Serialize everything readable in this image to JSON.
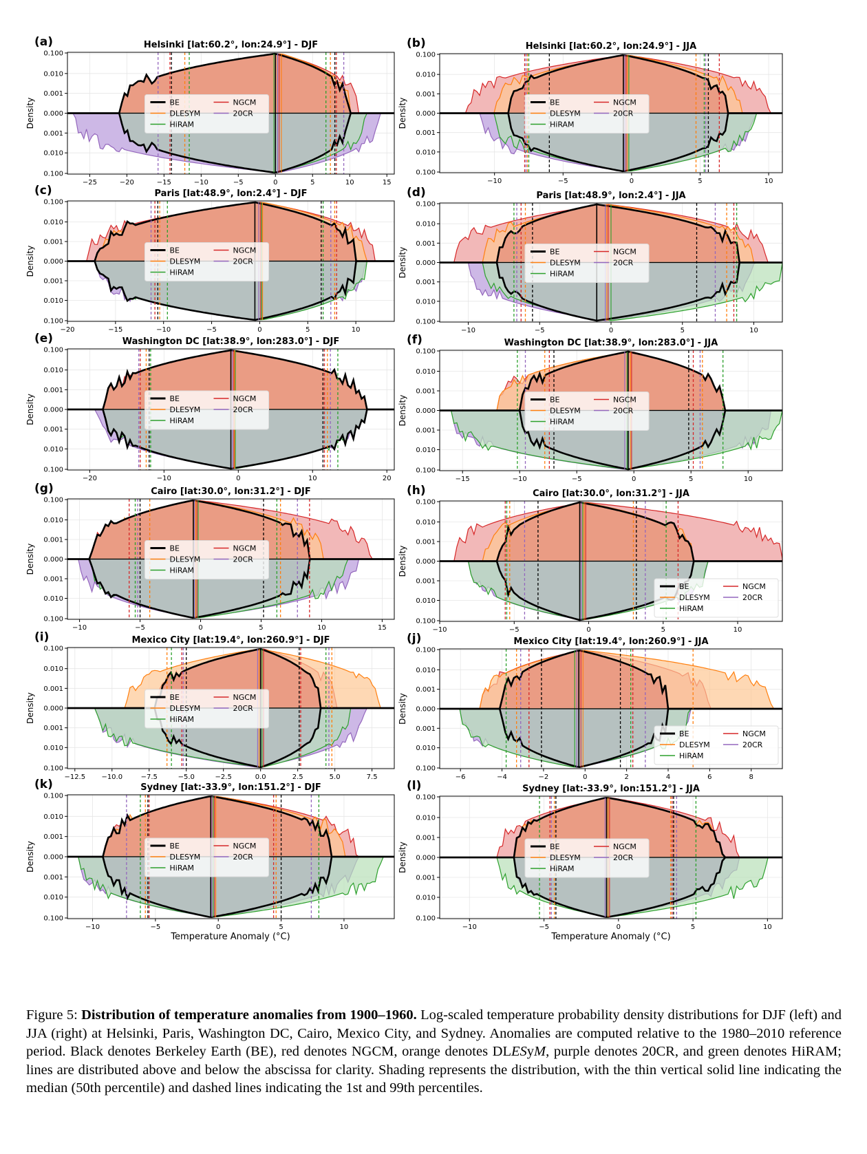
{
  "figure": {
    "xlabel": "Temperature Anomaly (°C)",
    "ylabel": "Density",
    "legend": [
      "BE",
      "NGCM",
      "DLESYM",
      "20CR",
      "HiRAM"
    ]
  },
  "colors": {
    "BE": "#000000",
    "NGCM": "#d62728",
    "DLESYM": "#ff7f0e",
    "20CR": "#9467bd",
    "HiRAM": "#2ca02c",
    "upper_fill": "#ea9c84",
    "lower_fill": "#b6c1c0",
    "red_fill": "#f2b8b8",
    "orange_fill": "#fdc894",
    "purple_fill": "#cdb8e6",
    "green_fill": "#b8e0b8"
  },
  "chart_data": [
    {
      "panel": "(a)",
      "type": "area",
      "title": "Helsinki [lat:60.2°, lon:24.9°] - DJF",
      "xlim": [
        -28,
        16
      ],
      "xticks": [
        -25,
        -20,
        -15,
        -10,
        -5,
        0,
        5,
        10,
        15
      ],
      "xticklabels": [
        "−25",
        "−20",
        "−15",
        "−10",
        "−5",
        "0",
        "5",
        "10",
        "15"
      ],
      "yscale": "symlog",
      "yticklabels": [
        "0.100",
        "0.010",
        "0.001",
        "0.000",
        "0.001",
        "0.010",
        "0.100"
      ],
      "span": {
        "BE": [
          -21,
          10
        ],
        "NGCM": [
          -16,
          11
        ],
        "DLESYM": [
          -15,
          10
        ],
        "20CR": [
          -27,
          14
        ],
        "HiRAM": [
          -17,
          12
        ]
      },
      "median": {
        "BE": 0,
        "NGCM": 0.5,
        "DLESYM": 0.8,
        "20CR": 0.3,
        "HiRAM": -0.2
      },
      "p1": {
        "BE": -14,
        "NGCM": -14.2,
        "DLESYM": -12.2,
        "20CR": -15.8,
        "HiRAM": -11.6
      },
      "p99": {
        "BE": 8,
        "NGCM": 8.2,
        "DLESYM": 7.4,
        "20CR": 9.2,
        "HiRAM": 6.8
      },
      "legend_loc": "center"
    },
    {
      "panel": "(b)",
      "type": "area",
      "title": "Helsinki [lat:60.2°, lon:24.9°] - JJA",
      "xlim": [
        -14,
        11
      ],
      "xticks": [
        -10,
        -5,
        0,
        5,
        10
      ],
      "xticklabels": [
        "−10",
        "−5",
        "0",
        "5",
        "10"
      ],
      "yscale": "symlog",
      "yticklabels": [
        "0.100",
        "0.010",
        "0.001",
        "0.000",
        "0.001",
        "0.010",
        "0.100"
      ],
      "span": {
        "BE": [
          -9,
          7
        ],
        "NGCM": [
          -12,
          10
        ],
        "DLESYM": [
          -10,
          8
        ],
        "20CR": [
          -11,
          9
        ],
        "HiRAM": [
          -10,
          9
        ]
      },
      "median": {
        "BE": -0.6,
        "NGCM": -0.4,
        "DLESYM": -0.3,
        "20CR": -0.5,
        "HiRAM": -0.2
      },
      "p1": {
        "BE": -6,
        "NGCM": -7.8,
        "DLESYM": -7.6,
        "20CR": -7.7,
        "HiRAM": -7.5
      },
      "p99": {
        "BE": 5.6,
        "NGCM": 6.4,
        "DLESYM": 4.7,
        "20CR": 5.4,
        "HiRAM": 5.3
      },
      "legend_loc": "center"
    },
    {
      "panel": "(c)",
      "type": "area",
      "title": "Paris [lat:48.9°, lon:2.4°] - DJF",
      "xlim": [
        -20,
        14
      ],
      "xticks": [
        -20,
        -15,
        -10,
        -5,
        0,
        5,
        10
      ],
      "xticklabels": [
        "−20",
        "−15",
        "−10",
        "−5",
        "0",
        "5",
        "10"
      ],
      "yscale": "symlog",
      "yticklabels": [
        "0.100",
        "0.010",
        "0.001",
        "0.000",
        "0.001",
        "0.010",
        "0.100"
      ],
      "span": {
        "BE": [
          -17,
          10
        ],
        "NGCM": [
          -18,
          12
        ],
        "DLESYM": [
          -17,
          11
        ],
        "20CR": [
          -17,
          11
        ],
        "HiRAM": [
          -16,
          11
        ]
      },
      "median": {
        "BE": -0.5,
        "NGCM": 0.1,
        "DLESYM": 0.3,
        "20CR": -0.1,
        "HiRAM": 0.2
      },
      "p1": {
        "BE": -10.6,
        "NGCM": -10.9,
        "DLESYM": -10.4,
        "20CR": -11.3,
        "HiRAM": -9.6
      },
      "p99": {
        "BE": 6.4,
        "NGCM": 8,
        "DLESYM": 7.8,
        "20CR": 7.4,
        "HiRAM": 6.6
      },
      "legend_loc": "center"
    },
    {
      "panel": "(d)",
      "type": "area",
      "title": "Paris [lat:48.9°, lon:2.4°] - JJA",
      "xlim": [
        -12,
        12
      ],
      "xticks": [
        -10,
        -5,
        0,
        5,
        10
      ],
      "xticklabels": [
        "−10",
        "−5",
        "0",
        "5",
        "10"
      ],
      "yscale": "symlog",
      "yticklabels": [
        "0.100",
        "0.010",
        "0.001",
        "0.000",
        "0.001",
        "0.010",
        "0.100"
      ],
      "span": {
        "BE": [
          -8,
          9
        ],
        "NGCM": [
          -11,
          11
        ],
        "DLESYM": [
          -9,
          10
        ],
        "20CR": [
          -10,
          10
        ],
        "HiRAM": [
          -9,
          12
        ]
      },
      "median": {
        "BE": -1,
        "NGCM": -0.2,
        "DLESYM": -0.3,
        "20CR": -0.4,
        "HiRAM": 0
      },
      "p1": {
        "BE": -5.5,
        "NGCM": -6.3,
        "DLESYM": -6,
        "20CR": -6.6,
        "HiRAM": -6.8
      },
      "p99": {
        "BE": 6,
        "NGCM": 8.6,
        "DLESYM": 8.1,
        "20CR": 7.3,
        "HiRAM": 8.8
      },
      "legend_loc": "center"
    },
    {
      "panel": "(e)",
      "type": "area",
      "title": "Washington DC [lat:38.9°, lon:283.0°] - DJF",
      "xlim": [
        -23,
        21
      ],
      "xticks": [
        -20,
        -10,
        0,
        10,
        20
      ],
      "xticklabels": [
        "−20",
        "−10",
        "0",
        "10",
        "20"
      ],
      "yscale": "symlog",
      "yticklabels": [
        "0.100",
        "0.010",
        "0.001",
        "0.000",
        "0.001",
        "0.010",
        "0.100"
      ],
      "span": {
        "BE": [
          -18,
          17
        ],
        "NGCM": [
          -17,
          14
        ],
        "DLESYM": [
          -16,
          14
        ],
        "20CR": [
          -19,
          16
        ],
        "HiRAM": [
          -17,
          16
        ]
      },
      "median": {
        "BE": -1,
        "NGCM": -0.6,
        "DLESYM": -0.5,
        "20CR": -0.8,
        "HiRAM": -0.4
      },
      "p1": {
        "BE": -12,
        "NGCM": -13.2,
        "DLESYM": -12.4,
        "20CR": -13.4,
        "HiRAM": -11.8
      },
      "p99": {
        "BE": 11.4,
        "NGCM": 11.6,
        "DLESYM": 12,
        "20CR": 12.4,
        "HiRAM": 13.4
      },
      "legend_loc": "center"
    },
    {
      "panel": "(f)",
      "type": "area",
      "title": "Washington DC [lat:38.9°, lon:283.0°] - JJA",
      "xlim": [
        -17,
        13
      ],
      "xticks": [
        -15,
        -10,
        -5,
        0,
        5,
        10
      ],
      "xticklabels": [
        "−15",
        "−10",
        "−5",
        "0",
        "5",
        "10"
      ],
      "yscale": "symlog",
      "yticklabels": [
        "0.100",
        "0.010",
        "0.001",
        "0.000",
        "0.001",
        "0.010",
        "0.100"
      ],
      "span": {
        "BE": [
          -10,
          8
        ],
        "NGCM": [
          -12,
          7
        ],
        "DLESYM": [
          -12,
          7
        ],
        "20CR": [
          -16,
          12
        ],
        "HiRAM": [
          -16,
          13
        ]
      },
      "median": {
        "BE": -0.5,
        "NGCM": -0.2,
        "DLESYM": -0.3,
        "20CR": -0.8,
        "HiRAM": -0.6
      },
      "p1": {
        "BE": -7,
        "NGCM": -7.4,
        "DLESYM": -7.8,
        "20CR": -9.5,
        "HiRAM": -10.2
      },
      "p99": {
        "BE": 4.8,
        "NGCM": 5.2,
        "DLESYM": 6,
        "20CR": 5.8,
        "HiRAM": 7.8
      },
      "legend_loc": "center"
    },
    {
      "panel": "(g)",
      "type": "area",
      "title": "Cairo [lat:30.0°, lon:31.2°] - DJF",
      "xlim": [
        -11,
        16
      ],
      "xticks": [
        -10,
        -5,
        0,
        5,
        10,
        15
      ],
      "xticklabels": [
        "−10",
        "−5",
        "0",
        "5",
        "10",
        "15"
      ],
      "yscale": "symlog",
      "yticklabels": [
        "0.100",
        "0.010",
        "0.001",
        "0.000",
        "0.001",
        "0.010",
        "0.100"
      ],
      "span": {
        "BE": [
          -9,
          9
        ],
        "NGCM": [
          -9,
          14
        ],
        "DLESYM": [
          -8,
          10
        ],
        "20CR": [
          -10,
          13
        ],
        "HiRAM": [
          -9,
          12
        ]
      },
      "median": {
        "BE": -0.6,
        "NGCM": -0.3,
        "DLESYM": -0.4,
        "20CR": -0.5,
        "HiRAM": -0.2
      },
      "p1": {
        "BE": -5,
        "NGCM": -5.9,
        "DLESYM": -4.2,
        "20CR": -5.2,
        "HiRAM": -5.4
      },
      "p99": {
        "BE": 5.2,
        "NGCM": 9,
        "DLESYM": 6.6,
        "20CR": 8,
        "HiRAM": 6.3
      },
      "legend_loc": "center"
    },
    {
      "panel": "(h)",
      "type": "area",
      "title": "Cairo [lat:30.0°, lon:31.2°] - JJA",
      "xlim": [
        -10,
        13
      ],
      "xticks": [
        -10,
        -5,
        0,
        5,
        10
      ],
      "xticklabels": [
        "−10",
        "−5",
        "0",
        "5",
        "10"
      ],
      "yscale": "symlog",
      "yticklabels": [
        "0.100",
        "0.010",
        "0.001",
        "0.000",
        "0.001",
        "0.010",
        "0.100"
      ],
      "span": {
        "BE": [
          -6,
          7
        ],
        "NGCM": [
          -9,
          13
        ],
        "DLESYM": [
          -7,
          7
        ],
        "20CR": [
          -8,
          8
        ],
        "HiRAM": [
          -8,
          8
        ]
      },
      "median": {
        "BE": -0.6,
        "NGCM": -0.2,
        "DLESYM": -0.3,
        "20CR": -0.5,
        "HiRAM": -0.4
      },
      "p1": {
        "BE": -3.4,
        "NGCM": -5.6,
        "DLESYM": -5.3,
        "20CR": -4.3,
        "HiRAM": -5.5
      },
      "p99": {
        "BE": 3.2,
        "NGCM": 6,
        "DLESYM": 3,
        "20CR": 3.8,
        "HiRAM": 5.2
      },
      "legend_loc": "lower right"
    },
    {
      "panel": "(i)",
      "type": "area",
      "title": "Mexico City [lat:19.4°, lon:260.9°] - DJF",
      "xlim": [
        -13,
        9
      ],
      "xticks": [
        -12.5,
        -10,
        -7.5,
        -5,
        -2.5,
        0,
        2.5,
        5,
        7.5
      ],
      "xticklabels": [
        "−12.5",
        "−10.0",
        "−7.5",
        "−5.0",
        "−2.5",
        "0.0",
        "2.5",
        "5.0",
        "7.5"
      ],
      "yscale": "symlog",
      "yticklabels": [
        "0.100",
        "0.010",
        "0.001",
        "0.000",
        "0.001",
        "0.010",
        "0.100"
      ],
      "span": {
        "BE": [
          -7,
          4
        ],
        "NGCM": [
          -7,
          5
        ],
        "DLESYM": [
          -9,
          8
        ],
        "20CR": [
          -11,
          7
        ],
        "HiRAM": [
          -11,
          6
        ]
      },
      "median": {
        "BE": 0,
        "NGCM": 0.2,
        "DLESYM": -0.1,
        "20CR": -0.2,
        "HiRAM": 0.1
      },
      "p1": {
        "BE": -5,
        "NGCM": -5.3,
        "DLESYM": -6.3,
        "20CR": -5.2,
        "HiRAM": -6
      },
      "p99": {
        "BE": 2.6,
        "NGCM": 2.7,
        "DLESYM": 4.8,
        "20CR": 4.6,
        "HiRAM": 4.4
      },
      "legend_loc": "center"
    },
    {
      "panel": "(j)",
      "type": "area",
      "title": "Mexico City [lat:19.4°, lon:260.9°] - JJA",
      "xlim": [
        -7,
        9.5
      ],
      "xticks": [
        -6,
        -4,
        -2,
        0,
        2,
        4,
        6,
        8
      ],
      "xticklabels": [
        "−6",
        "−4",
        "−2",
        "0",
        "2",
        "4",
        "6",
        "8"
      ],
      "yscale": "symlog",
      "yticklabels": [
        "0.100",
        "0.010",
        "0.001",
        "0.000",
        "0.001",
        "0.010",
        "0.100"
      ],
      "span": {
        "BE": [
          -4,
          4
        ],
        "NGCM": [
          -5,
          6
        ],
        "DLESYM": [
          -5,
          9
        ],
        "20CR": [
          -6,
          5
        ],
        "HiRAM": [
          -6,
          5
        ]
      },
      "median": {
        "BE": -0.3,
        "NGCM": -0.2,
        "DLESYM": -0.1,
        "20CR": -0.4,
        "HiRAM": -0.5
      },
      "p1": {
        "BE": -2.1,
        "NGCM": -2.7,
        "DLESYM": -3.3,
        "20CR": -3.1,
        "HiRAM": -3.8
      },
      "p99": {
        "BE": 1.7,
        "NGCM": 2.3,
        "DLESYM": 5.2,
        "20CR": 2.9,
        "HiRAM": 2.2
      },
      "legend_loc": "lower right"
    },
    {
      "panel": "(k)",
      "type": "area",
      "title": "Sydney [lat:-33.9°, lon:151.2°] - DJF",
      "xlim": [
        -12,
        14
      ],
      "xticks": [
        -10,
        -5,
        0,
        5,
        10
      ],
      "xticklabels": [
        "−10",
        "−5",
        "0",
        "5",
        "10"
      ],
      "yscale": "symlog",
      "yticklabels": [
        "0.100",
        "0.010",
        "0.001",
        "0.000",
        "0.001",
        "0.010",
        "0.100"
      ],
      "span": {
        "BE": [
          -9,
          9
        ],
        "NGCM": [
          -9,
          11
        ],
        "DLESYM": [
          -9,
          10
        ],
        "20CR": [
          -11,
          11
        ],
        "HiRAM": [
          -11,
          13
        ]
      },
      "median": {
        "BE": -0.6,
        "NGCM": -0.3,
        "DLESYM": -0.2,
        "20CR": -0.5,
        "HiRAM": -0.4
      },
      "p1": {
        "BE": -5.6,
        "NGCM": -5.5,
        "DLESYM": -5.8,
        "20CR": -7.3,
        "HiRAM": -6.2
      },
      "p99": {
        "BE": 5,
        "NGCM": 4.4,
        "DLESYM": 4.6,
        "20CR": 7.4,
        "HiRAM": 8
      },
      "legend_loc": "center"
    },
    {
      "panel": "(l)",
      "type": "area",
      "title": "Sydney [lat:-33.9°, lon:151.2°] - JJA",
      "xlim": [
        -12,
        11
      ],
      "xticks": [
        -10,
        -5,
        0,
        5,
        10
      ],
      "xticklabels": [
        "−10",
        "−5",
        "0",
        "5",
        "10"
      ],
      "yscale": "symlog",
      "yticklabels": [
        "0.100",
        "0.010",
        "0.001",
        "0.000",
        "0.001",
        "0.010",
        "0.100"
      ],
      "span": {
        "BE": [
          -7,
          7
        ],
        "NGCM": [
          -8,
          8
        ],
        "DLESYM": [
          -7,
          7
        ],
        "20CR": [
          -7,
          8
        ],
        "HiRAM": [
          -8,
          10
        ]
      },
      "median": {
        "BE": -0.8,
        "NGCM": -0.6,
        "DLESYM": -0.7,
        "20CR": -0.9,
        "HiRAM": -0.7
      },
      "p1": {
        "BE": -4.2,
        "NGCM": -4.6,
        "DLESYM": -4.3,
        "20CR": -4.5,
        "HiRAM": -5.3
      },
      "p99": {
        "BE": 3.7,
        "NGCM": 3.6,
        "DLESYM": 3.5,
        "20CR": 3.9,
        "HiRAM": 5.2
      },
      "legend_loc": "center"
    }
  ],
  "caption": {
    "prefix": "Figure 5: ",
    "bold": "Distribution of temperature anomalies from 1900–1960.",
    "text1": " Log-scaled temperature probability density distributions for DJF (left) and JJA (right) at Helsinki, Paris, Washington DC, Cairo, Mexico City, and Sydney. Anomalies are computed relative to the 1980–2010 reference period. Black denotes Berkeley Earth (BE), red denotes NGCM, orange denotes DL",
    "italic1": "ES",
    "mid": "y",
    "text2": "M, purple denotes 20CR, and green denotes HiRAM; lines are distributed above and below the abscissa for clarity. Shading represents the distribution, with the thin vertical solid line indicating the median (50th percentile) and dashed lines indicating the 1st and 99th percentiles."
  }
}
